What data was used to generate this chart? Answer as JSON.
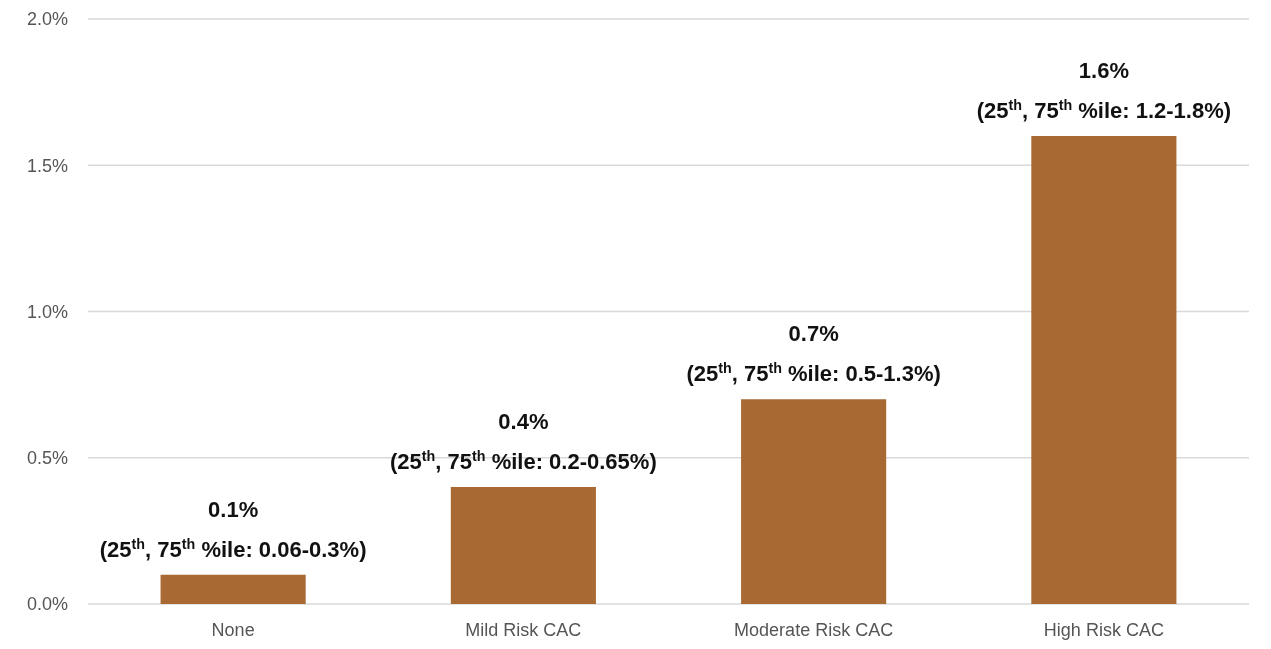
{
  "chart_data": {
    "type": "bar",
    "categories": [
      "None",
      "Mild Risk CAC",
      "Moderate Risk CAC",
      "High Risk CAC"
    ],
    "values": [
      0.1,
      0.4,
      0.7,
      1.6
    ],
    "value_labels": [
      "0.1%",
      "0.4%",
      "0.7%",
      "1.6%"
    ],
    "color": "#a86a32",
    "ylim": [
      0,
      2
    ],
    "yticks": [
      {
        "value": 0,
        "label": "0.0%"
      },
      {
        "value": 0.5,
        "label": "0.5%"
      },
      {
        "value": 1,
        "label": "1.0%"
      },
      {
        "value": 1.5,
        "label": "1.5%"
      },
      {
        "value": 2,
        "label": "2.0%"
      }
    ],
    "grid": "y",
    "annotations": [
      {
        "text": "(25$^{th}$, 75$^{th}$ %ile: 0.06-0.3%)",
        "x": "None",
        "y": 0.1
      },
      {
        "text": "(25$^{th}$, 75$^{th}$ %ile: 0.2-0.65%)",
        "x": "Mild Risk CAC",
        "y": 0.4
      },
      {
        "text": "(25$^{th}$, 75$^{th}$ %ile: 0.5-1.3%)",
        "x": "Moderate Risk CAC",
        "y": 0.7
      },
      {
        "text": "(25$^{th}$, 75$^{th}$ %ile: 1.2-1.8%)",
        "x": "High Risk CAC",
        "y": 1.6
      }
    ]
  }
}
